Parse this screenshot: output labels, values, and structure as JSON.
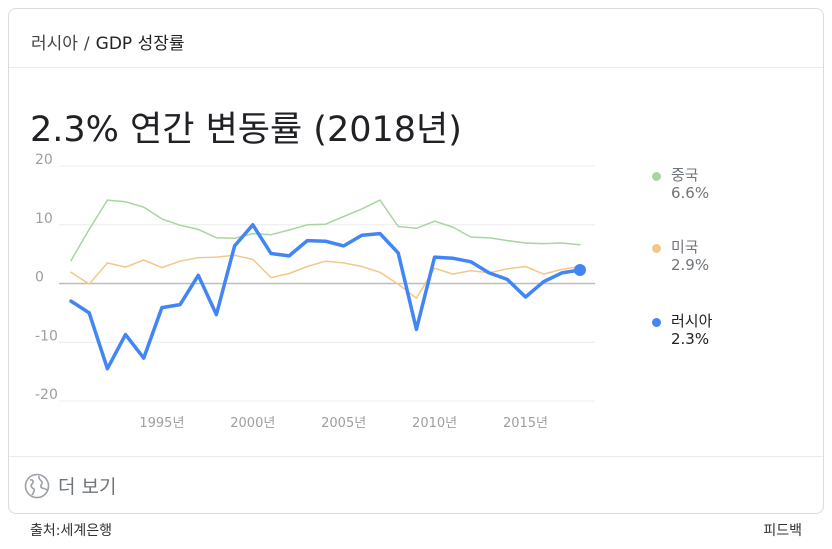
{
  "breadcrumb": {
    "country": "러시아",
    "separator": "/",
    "metric": "GDP 성장률"
  },
  "headline": "2.3% 연간 변동률 (2018년)",
  "legend": [
    {
      "name": "중국",
      "value": "6.6%",
      "color": "#a8d5a2",
      "text_color": "#70757a"
    },
    {
      "name": "미국",
      "value": "2.9%",
      "color": "#f2c889",
      "text_color": "#70757a"
    },
    {
      "name": "러시아",
      "value": "2.3%",
      "color": "#4285f4",
      "text_color": "#202124"
    }
  ],
  "more_label": "더 보기",
  "footer": {
    "source": "출처:세계은행",
    "feedback": "피드백"
  },
  "chart_data": {
    "type": "line",
    "x": [
      1990,
      1991,
      1992,
      1993,
      1994,
      1995,
      1996,
      1997,
      1998,
      1999,
      2000,
      2001,
      2002,
      2003,
      2004,
      2005,
      2006,
      2007,
      2008,
      2009,
      2010,
      2011,
      2012,
      2013,
      2014,
      2015,
      2016,
      2017,
      2018
    ],
    "series": [
      {
        "name": "중국",
        "color": "#a8d5a2",
        "values": [
          3.9,
          9.2,
          14.2,
          13.9,
          13.0,
          11.0,
          9.9,
          9.2,
          7.8,
          7.7,
          8.5,
          8.3,
          9.1,
          10.0,
          10.1,
          11.4,
          12.7,
          14.2,
          9.7,
          9.4,
          10.6,
          9.6,
          7.9,
          7.8,
          7.3,
          6.9,
          6.8,
          6.9,
          6.6
        ]
      },
      {
        "name": "미국",
        "color": "#f2c889",
        "values": [
          1.9,
          -0.1,
          3.5,
          2.8,
          4.0,
          2.7,
          3.8,
          4.4,
          4.5,
          4.8,
          4.1,
          1.0,
          1.7,
          2.9,
          3.8,
          3.5,
          2.9,
          1.9,
          -0.1,
          -2.5,
          2.6,
          1.6,
          2.2,
          1.8,
          2.5,
          2.9,
          1.6,
          2.4,
          2.9
        ]
      },
      {
        "name": "러시아",
        "color": "#4285f4",
        "values": [
          -3.0,
          -5.0,
          -14.5,
          -8.7,
          -12.7,
          -4.1,
          -3.6,
          1.4,
          -5.3,
          6.4,
          10.0,
          5.1,
          4.7,
          7.3,
          7.2,
          6.4,
          8.2,
          8.5,
          5.2,
          -7.8,
          4.5,
          4.3,
          3.7,
          1.8,
          0.7,
          -2.3,
          0.3,
          1.8,
          2.3
        ]
      }
    ],
    "ylim": [
      -20,
      20
    ],
    "yticks": [
      20,
      10,
      0,
      -10,
      -20
    ],
    "xticks": [
      {
        "year": 1995,
        "label": "1995년"
      },
      {
        "year": 2000,
        "label": "2000년"
      },
      {
        "year": 2005,
        "label": "2005년"
      },
      {
        "year": 2010,
        "label": "2010년"
      },
      {
        "year": 2015,
        "label": "2015년"
      }
    ],
    "title": "2.3% 연간 변동률 (2018년)",
    "grid": true,
    "legend_position": "right"
  }
}
